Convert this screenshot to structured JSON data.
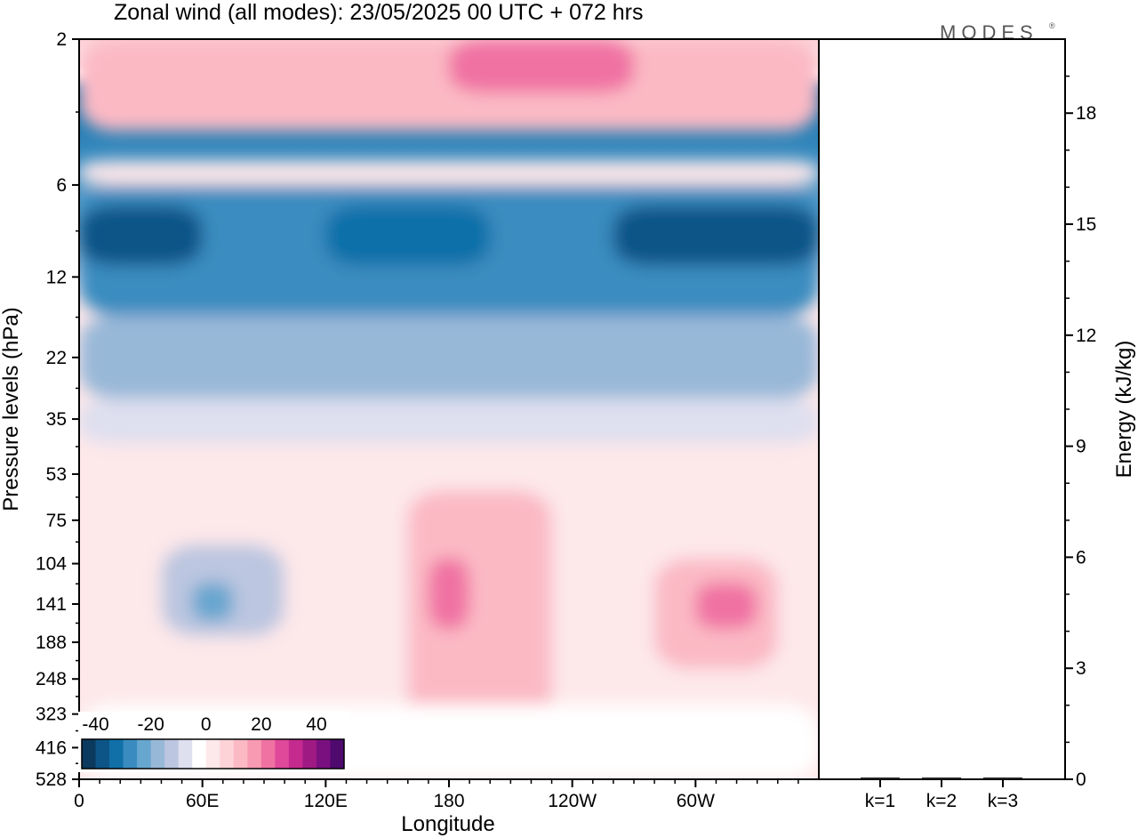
{
  "title": "Zonal wind (all modes):  23/05/2025  00 UTC  + 072 hrs",
  "brand": "MODES",
  "brand_mark": "®",
  "chart_data": [
    {
      "type": "heatmap",
      "xlabel": "Longitude",
      "ylabel": "Pressure levels (hPa)",
      "x_ticks": [
        "0",
        "60E",
        "120E",
        "180",
        "120W",
        "60W"
      ],
      "x_tick_longitudes": [
        0,
        60,
        120,
        180,
        240,
        300
      ],
      "xlim": [
        0,
        360
      ],
      "y_ticks": [
        "2",
        "6",
        "12",
        "22",
        "35",
        "53",
        "75",
        "104",
        "141",
        "188",
        "248",
        "323",
        "416",
        "528"
      ],
      "colorbar": {
        "tick_labels": [
          "-40",
          "-20",
          "0",
          "20",
          "40"
        ],
        "tick_values": [
          -40,
          -20,
          0,
          20,
          40
        ],
        "levels": [
          -45,
          -40,
          -35,
          -30,
          -25,
          -20,
          -15,
          -10,
          -5,
          0,
          5,
          10,
          15,
          20,
          25,
          30,
          35,
          40,
          45,
          50
        ],
        "colors": [
          "#0b3a5e",
          "#0d5587",
          "#1170a8",
          "#3a8cc0",
          "#67a6cf",
          "#98b8d8",
          "#bcc6e0",
          "#dedfef",
          "#ffffff",
          "#fde8ea",
          "#fdd3d8",
          "#fbb9c4",
          "#f89ab2",
          "#f072a3",
          "#e0489a",
          "#c52a8e",
          "#a01a84",
          "#7a1080",
          "#4f0a6e"
        ]
      },
      "regions": [
        {
          "level_band": "2-4 hPa",
          "lon_range": [
            0,
            360
          ],
          "value": 12
        },
        {
          "level_band": "2-3 hPa",
          "lon_range": [
            180,
            270
          ],
          "value": 22
        },
        {
          "level_band": "5-6 hPa",
          "lon_range": [
            0,
            360
          ],
          "value": 0
        },
        {
          "level_band": "6-16 hPa",
          "lon_range": [
            0,
            360
          ],
          "value": -28
        },
        {
          "level_band": "7-11 hPa",
          "lon_range": [
            0,
            60
          ],
          "value": -38
        },
        {
          "level_band": "7-11 hPa",
          "lon_range": [
            120,
            200
          ],
          "value": -32
        },
        {
          "level_band": "7-11 hPa",
          "lon_range": [
            260,
            360
          ],
          "value": -36
        },
        {
          "level_band": "16-30 hPa",
          "lon_range": [
            0,
            360
          ],
          "value": -18
        },
        {
          "level_band": "30-42 hPa",
          "lon_range": [
            0,
            360
          ],
          "value": -7
        },
        {
          "level_band": "42-300 hPa",
          "lon_range": [
            0,
            360
          ],
          "value": 3
        },
        {
          "level_band": "90-180 hPa",
          "lon_range": [
            40,
            100
          ],
          "value": -12
        },
        {
          "level_band": "120-160 hPa",
          "lon_range": [
            55,
            75
          ],
          "value": -24
        },
        {
          "level_band": "60-350 hPa",
          "lon_range": [
            160,
            230
          ],
          "value": 12
        },
        {
          "level_band": "100-170 hPa",
          "lon_range": [
            170,
            190
          ],
          "value": 22
        },
        {
          "level_band": "100-230 hPa",
          "lon_range": [
            280,
            340
          ],
          "value": 14
        },
        {
          "level_band": "120-170 hPa",
          "lon_range": [
            300,
            330
          ],
          "value": 22
        },
        {
          "level_band": "300-528 hPa",
          "lon_range": [
            0,
            360
          ],
          "value": -3
        }
      ]
    },
    {
      "type": "bar",
      "ylabel": "Energy (kJ/kg)",
      "categories": [
        "k=1",
        "k=2",
        "k=3"
      ],
      "values": [
        0.02,
        0.02,
        0.02
      ],
      "ylim": [
        0,
        20
      ],
      "y_ticks": [
        0,
        3,
        6,
        9,
        12,
        15,
        18
      ]
    }
  ]
}
